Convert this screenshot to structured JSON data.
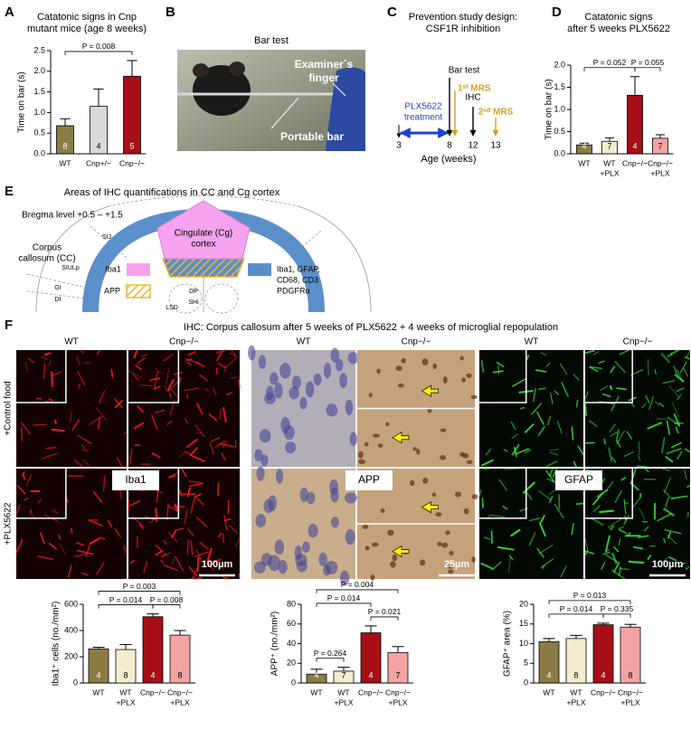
{
  "panel_labels": [
    "A",
    "B",
    "C",
    "D",
    "E",
    "F"
  ],
  "chart_data": [
    {
      "type": "bar",
      "title": "Catatonic signs in Cnp",
      "subtitle": "mutant mice (age 8 weeks)",
      "y_label": "Time on bar (s)",
      "categories": [
        "WT",
        "Cnp+/−",
        "Cnp−/−"
      ],
      "values": [
        0.68,
        1.15,
        1.88
      ],
      "errors": [
        0.17,
        0.42,
        0.38
      ],
      "n": [
        8,
        4,
        5
      ],
      "colors": [
        "#8c7b45",
        "#d9d9d9",
        "#a50f15"
      ],
      "ylim": [
        0,
        2.5
      ],
      "yticks": [
        {
          "value": 0,
          "label": "0.0"
        },
        0.5,
        {
          "value": 1,
          "label": "1.0"
        },
        1.5,
        {
          "value": 2,
          "label": "2.0"
        },
        2.5
      ],
      "comparisons": [
        {
          "between": [
            0,
            2
          ],
          "label": "P = 0.008"
        }
      ]
    },
    {
      "type": "bar",
      "title": "Catatonic signs",
      "subtitle": "after 5 weeks PLX5622",
      "y_label": "Time on bar (s)",
      "categories": [
        "WT",
        "WT",
        "Cnp−/−",
        "Cnp−/−"
      ],
      "category_notes": [
        null,
        "+PLX",
        null,
        "+PLX"
      ],
      "values": [
        0.2,
        0.28,
        1.32,
        0.35
      ],
      "errors": [
        0.04,
        0.08,
        0.42,
        0.08
      ],
      "n": [
        4,
        7,
        4,
        7
      ],
      "colors": [
        "#8c7b45",
        "#f3edcf",
        "#a50f15",
        "#f4a3a3"
      ],
      "ylim": [
        0,
        2
      ],
      "yticks": [
        {
          "value": 0,
          "label": "0.0"
        },
        0.5,
        {
          "value": 1,
          "label": "1.0"
        },
        1.5,
        {
          "value": 2,
          "label": "2.0"
        }
      ],
      "comparisons": [
        {
          "between": [
            0,
            2
          ],
          "label": "P = 0.052"
        },
        {
          "between": [
            2,
            3
          ],
          "label": "P = 0.055"
        }
      ]
    },
    {
      "type": "bar",
      "y_label": "Iba1⁺ cells (no./mm²)",
      "categories": [
        "WT",
        "WT",
        "Cnp−/−",
        "Cnp−/−"
      ],
      "category_notes": [
        null,
        "+PLX",
        null,
        "+PLX"
      ],
      "values": [
        260,
        255,
        505,
        365
      ],
      "errors": [
        12,
        38,
        22,
        35
      ],
      "n": [
        4,
        8,
        4,
        8
      ],
      "colors": [
        "#8c7b45",
        "#f3edcf",
        "#a50f15",
        "#f4a3a3"
      ],
      "ylim": [
        0,
        600
      ],
      "yticks": [
        0,
        200,
        400,
        600
      ],
      "comparisons": [
        {
          "between": [
            0,
            3
          ],
          "label": "P = 0.003"
        },
        {
          "between": [
            0,
            2
          ],
          "label": "P = 0.014"
        },
        {
          "between": [
            2,
            3
          ],
          "label": "P = 0.008"
        }
      ]
    },
    {
      "type": "bar",
      "y_label": "APP⁺ (no./mm²)",
      "categories": [
        "WT",
        "WT",
        "Cnp−/−",
        "Cnp−/−"
      ],
      "category_notes": [
        null,
        "+PLX",
        null,
        "+PLX"
      ],
      "values": [
        9,
        12,
        51,
        31
      ],
      "errors": [
        5,
        4,
        7,
        6
      ],
      "n": [
        4,
        7,
        4,
        7
      ],
      "colors": [
        "#8c7b45",
        "#f3edcf",
        "#a50f15",
        "#f4a3a3"
      ],
      "ylim": [
        0,
        80
      ],
      "yticks": [
        0,
        20,
        40,
        60,
        80
      ],
      "comparisons": [
        {
          "between": [
            0,
            3
          ],
          "label": "P = 0.004"
        },
        {
          "between": [
            0,
            2
          ],
          "label": "P = 0.014"
        },
        {
          "between": [
            2,
            3
          ],
          "label": "P = 0.021"
        },
        {
          "between": [
            0,
            1
          ],
          "label": "P = 0.264"
        }
      ]
    },
    {
      "type": "bar",
      "y_label": "GFAP⁺ area (%)",
      "categories": [
        "WT",
        "WT",
        "Cnp−/−",
        "Cnp−/−"
      ],
      "category_notes": [
        null,
        "+PLX",
        null,
        "+PLX"
      ],
      "values": [
        10.5,
        11.3,
        14.8,
        14.2
      ],
      "errors": [
        0.8,
        0.8,
        0.4,
        0.7
      ],
      "n": [
        4,
        8,
        4,
        8
      ],
      "colors": [
        "#8c7b45",
        "#f3edcf",
        "#a50f15",
        "#f4a3a3"
      ],
      "ylim": [
        0,
        20
      ],
      "yticks": [
        0,
        5,
        10,
        15,
        20
      ],
      "comparisons": [
        {
          "between": [
            0,
            3
          ],
          "label": "P = 0.013"
        },
        {
          "between": [
            0,
            2
          ],
          "label": "P = 0.014"
        },
        {
          "between": [
            2,
            3
          ],
          "label": "P = 0.335"
        }
      ]
    }
  ],
  "panel_b": {
    "title": "Bar test",
    "finger_label": [
      "Examiner´s",
      "finger"
    ],
    "bar_label": "Portable bar"
  },
  "panel_c": {
    "title": [
      "Prevention study design:",
      "CSF1R inhibition"
    ],
    "treatment": [
      "PLX5622",
      "treatment"
    ],
    "events": [
      "Bar test",
      "1ˢᵗ MRS",
      "IHC",
      "2ⁿᵈ MRS"
    ],
    "ticks": [
      "3",
      "8",
      "12",
      "13"
    ],
    "axis_label": "Age (weeks)"
  },
  "panel_e": {
    "title": "Areas of IHC quantifications in CC and Cg cortex",
    "bregma": "Bregma level +0.5 – +1.5",
    "cc_label": [
      "Corpus",
      "callosum (CC)"
    ],
    "cg_label": [
      "Cingulate (Cg)",
      "cortex"
    ],
    "regions": [
      "SIJ",
      "SIULp",
      "GI",
      "DI",
      "DP",
      "SHi",
      "LSD"
    ],
    "legend_pink": "Iba1",
    "legend_hatched": "APP",
    "legend_blue": [
      "Iba1, GFAP,",
      "CD68, CD3",
      "PDGFRα"
    ]
  },
  "panel_f": {
    "title": "IHC: Corpus callosum after 5 weeks of PLX5622 + 4 weeks of microglial repopulation",
    "column_labels": [
      "WT",
      "Cnp−/−"
    ],
    "row_labels": [
      "+Control food",
      "+PLX5622"
    ],
    "stains": [
      "Iba1",
      "APP",
      "GFAP"
    ],
    "scale_bars": [
      "100µm",
      "25µm",
      "100µm"
    ]
  }
}
